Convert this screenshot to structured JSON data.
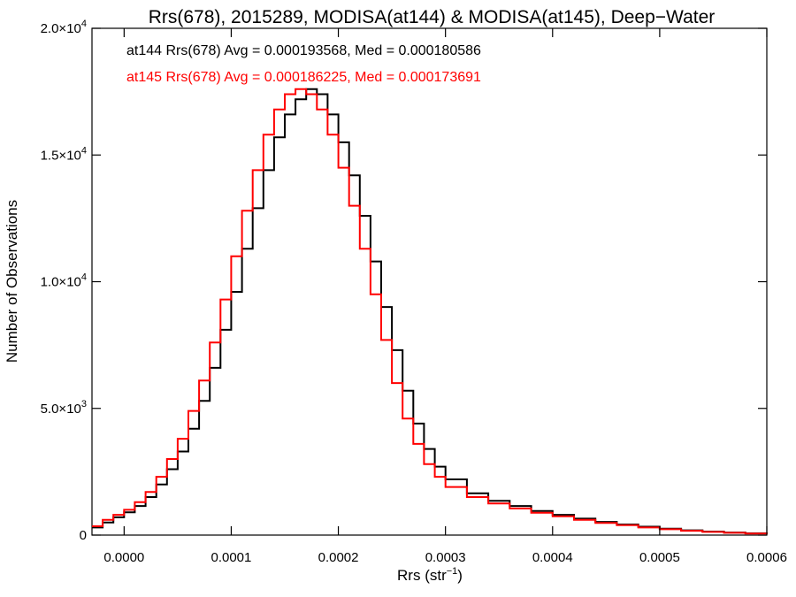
{
  "chart_data": {
    "type": "line",
    "title": "Rrs(678), 2015289, MODISA(at144) & MODISA(at145), Deep−Water",
    "xlabel": "Rrs (str",
    "xlabel_sup": "−1",
    "xlabel_close": ")",
    "ylabel": "Number of Observations",
    "xlim": [
      -3e-05,
      0.0006
    ],
    "ylim": [
      0,
      20000
    ],
    "grid": false,
    "legend_position": "top-left",
    "x_ticks": [
      {
        "value": 0.0,
        "label": "0.0000"
      },
      {
        "value": 0.0001,
        "label": "0.0001"
      },
      {
        "value": 0.0002,
        "label": "0.0002"
      },
      {
        "value": 0.0003,
        "label": "0.0003"
      },
      {
        "value": 0.0004,
        "label": "0.0004"
      },
      {
        "value": 0.0005,
        "label": "0.0005"
      },
      {
        "value": 0.0006,
        "label": "0.0006"
      }
    ],
    "y_ticks": [
      {
        "value": 0,
        "base": "0",
        "exp": ""
      },
      {
        "value": 5000,
        "base": "5.0×10",
        "exp": "3"
      },
      {
        "value": 10000,
        "base": "1.0×10",
        "exp": "4"
      },
      {
        "value": 15000,
        "base": "1.5×10",
        "exp": "4"
      },
      {
        "value": 20000,
        "base": "2.0×10",
        "exp": "4"
      }
    ],
    "series": [
      {
        "name": "at144 Rrs(678) Avg = 0.000193568, Med = 0.000180586",
        "color": "#000000",
        "points": [
          [
            -3e-05,
            300
          ],
          [
            -2e-05,
            500
          ],
          [
            -1e-05,
            700
          ],
          [
            0.0,
            900
          ],
          [
            1e-05,
            1150
          ],
          [
            2e-05,
            1500
          ],
          [
            3e-05,
            2000
          ],
          [
            4e-05,
            2600
          ],
          [
            5e-05,
            3300
          ],
          [
            6e-05,
            4200
          ],
          [
            7e-05,
            5300
          ],
          [
            8e-05,
            6600
          ],
          [
            9e-05,
            8100
          ],
          [
            0.0001,
            9600
          ],
          [
            0.00011,
            11300
          ],
          [
            0.00012,
            12900
          ],
          [
            0.00013,
            14400
          ],
          [
            0.00014,
            15700
          ],
          [
            0.00015,
            16600
          ],
          [
            0.00016,
            17200
          ],
          [
            0.00017,
            17600
          ],
          [
            0.00018,
            17400
          ],
          [
            0.00019,
            16600
          ],
          [
            0.0002,
            15500
          ],
          [
            0.00021,
            14200
          ],
          [
            0.00022,
            12600
          ],
          [
            0.00023,
            10800
          ],
          [
            0.00024,
            9000
          ],
          [
            0.00025,
            7300
          ],
          [
            0.00026,
            5700
          ],
          [
            0.00027,
            4400
          ],
          [
            0.00028,
            3400
          ],
          [
            0.00029,
            2700
          ],
          [
            0.0003,
            2200
          ],
          [
            0.00032,
            1650
          ],
          [
            0.00034,
            1350
          ],
          [
            0.00036,
            1150
          ],
          [
            0.00038,
            950
          ],
          [
            0.0004,
            800
          ],
          [
            0.00042,
            650
          ],
          [
            0.00044,
            520
          ],
          [
            0.00046,
            420
          ],
          [
            0.00048,
            330
          ],
          [
            0.0005,
            250
          ],
          [
            0.00052,
            190
          ],
          [
            0.00054,
            140
          ],
          [
            0.00056,
            100
          ],
          [
            0.00058,
            70
          ],
          [
            0.0006,
            40
          ]
        ]
      },
      {
        "name": "at145 Rrs(678) Avg = 0.000186225, Med = 0.000173691",
        "color": "#ff0000",
        "points": [
          [
            -3e-05,
            350
          ],
          [
            -2e-05,
            600
          ],
          [
            -1e-05,
            800
          ],
          [
            0.0,
            1000
          ],
          [
            1e-05,
            1300
          ],
          [
            2e-05,
            1700
          ],
          [
            3e-05,
            2300
          ],
          [
            4e-05,
            3000
          ],
          [
            5e-05,
            3800
          ],
          [
            6e-05,
            4900
          ],
          [
            7e-05,
            6100
          ],
          [
            8e-05,
            7600
          ],
          [
            9e-05,
            9300
          ],
          [
            0.0001,
            11000
          ],
          [
            0.00011,
            12800
          ],
          [
            0.00012,
            14400
          ],
          [
            0.00013,
            15800
          ],
          [
            0.00014,
            16800
          ],
          [
            0.00015,
            17400
          ],
          [
            0.00016,
            17600
          ],
          [
            0.00017,
            17400
          ],
          [
            0.00018,
            16800
          ],
          [
            0.00019,
            15800
          ],
          [
            0.0002,
            14500
          ],
          [
            0.00021,
            13000
          ],
          [
            0.00022,
            11300
          ],
          [
            0.00023,
            9500
          ],
          [
            0.00024,
            7700
          ],
          [
            0.00025,
            6000
          ],
          [
            0.00026,
            4600
          ],
          [
            0.00027,
            3600
          ],
          [
            0.00028,
            2800
          ],
          [
            0.00029,
            2300
          ],
          [
            0.0003,
            1900
          ],
          [
            0.00032,
            1500
          ],
          [
            0.00034,
            1250
          ],
          [
            0.00036,
            1050
          ],
          [
            0.00038,
            880
          ],
          [
            0.0004,
            740
          ],
          [
            0.00042,
            600
          ],
          [
            0.00044,
            480
          ],
          [
            0.00046,
            390
          ],
          [
            0.00048,
            300
          ],
          [
            0.0005,
            230
          ],
          [
            0.00052,
            170
          ],
          [
            0.00054,
            125
          ],
          [
            0.00056,
            90
          ],
          [
            0.00058,
            60
          ],
          [
            0.0006,
            35
          ]
        ]
      }
    ]
  }
}
